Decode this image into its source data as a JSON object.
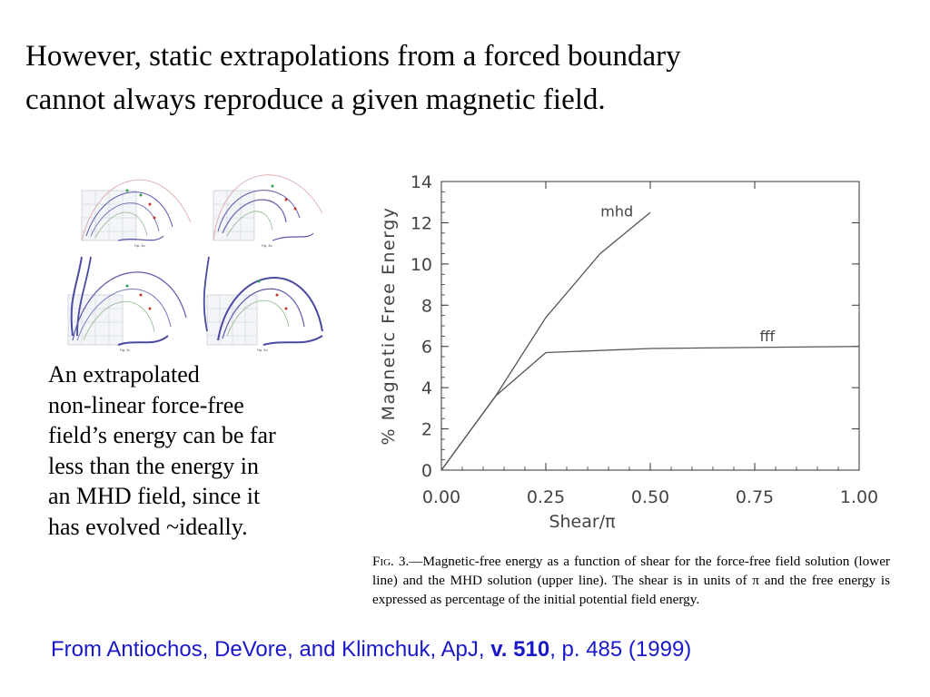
{
  "heading": {
    "line1": "However, static extrapolations from a forced boundary",
    "line2": "cannot always reproduce a given magnetic field."
  },
  "thumbnails": {
    "labels": [
      "Fig. 3a",
      "Fig. 3b",
      "Fig. 3c",
      "Fig. 3d"
    ],
    "colors": {
      "field_line": "#5a5aa8",
      "red_dots": "#c0392b",
      "green_dots": "#2e9e4f",
      "grid": "#9aa3b3"
    }
  },
  "description": {
    "lines": [
      "An extrapolated",
      "non-linear force-free",
      "field’s energy can be far",
      "less than the energy in",
      "an MHD field, since it",
      "has evolved ~ideally."
    ]
  },
  "chart_data": {
    "type": "line",
    "xlabel": "Shear/π",
    "ylabel": "% Magnetic Free Energy",
    "xlim": [
      0,
      1
    ],
    "ylim": [
      0,
      14
    ],
    "x_ticks": [
      "0.00",
      "0.25",
      "0.50",
      "0.75",
      "1.00"
    ],
    "y_ticks": [
      "0",
      "2",
      "4",
      "6",
      "8",
      "10",
      "12",
      "14"
    ],
    "series": [
      {
        "name": "mhd",
        "x": [
          0.0,
          0.13,
          0.25,
          0.38,
          0.5
        ],
        "y": [
          0.0,
          3.6,
          7.4,
          10.5,
          12.5
        ]
      },
      {
        "name": "fff",
        "x": [
          0.0,
          0.13,
          0.25,
          0.5,
          1.0
        ],
        "y": [
          0.0,
          3.6,
          5.7,
          5.9,
          6.0
        ]
      }
    ],
    "grid": false,
    "legend": "inline labels"
  },
  "caption": {
    "fig_label": "Fig. 3.",
    "text": "—Magnetic-free energy as a function of shear for the force-free field solution (lower line) and the MHD solution (upper line). The shear is in units of π and the free energy is expressed as percentage of the initial potential field energy."
  },
  "citation": {
    "prefix": "From Antiochos, DeVore, and Klimchuk, ApJ, ",
    "volume": "v. 510",
    "suffix": ", p. 485 (1999)",
    "color": "#1a18c8"
  }
}
